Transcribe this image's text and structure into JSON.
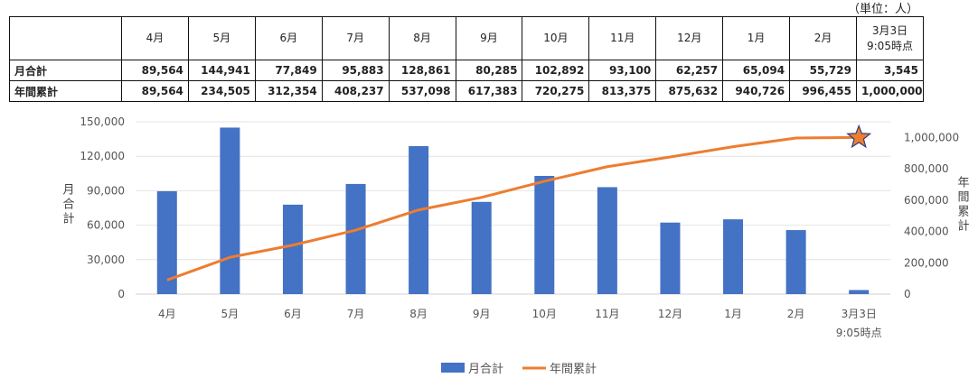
{
  "table": {
    "unit_note": "（単位：人）",
    "headers": [
      "",
      "4月",
      "5月",
      "6月",
      "7月",
      "8月",
      "9月",
      "10月",
      "11月",
      "12月",
      "1月",
      "2月",
      "3月3日\n9:05時点"
    ],
    "rows": [
      {
        "label": "月合計",
        "values": [
          "89,564",
          "144,941",
          "77,849",
          "95,883",
          "128,861",
          "80,285",
          "102,892",
          "93,100",
          "62,257",
          "65,094",
          "55,729",
          "3,545"
        ]
      },
      {
        "label": "年間累計",
        "values": [
          "89,564",
          "234,505",
          "312,354",
          "408,237",
          "537,098",
          "617,383",
          "720,275",
          "813,375",
          "875,632",
          "940,726",
          "996,455",
          "1,000,000"
        ]
      }
    ]
  },
  "chart_data": {
    "type": "bar",
    "categories": [
      "4月",
      "5月",
      "6月",
      "7月",
      "8月",
      "9月",
      "10月",
      "11月",
      "12月",
      "1月",
      "2月",
      "3月3日\n9:05時点"
    ],
    "series": [
      {
        "name": "月合計",
        "type": "bar",
        "axis": "left",
        "color": "#4472C4",
        "values": [
          89564,
          144941,
          77849,
          95883,
          128861,
          80285,
          102892,
          93100,
          62257,
          65094,
          55729,
          3545
        ]
      },
      {
        "name": "年間累計",
        "type": "line",
        "axis": "right",
        "color": "#ED7D31",
        "values": [
          89564,
          234505,
          312354,
          408237,
          537098,
          617383,
          720275,
          813375,
          875632,
          940726,
          996455,
          1000000
        ]
      }
    ],
    "y_left": {
      "label": "月合計",
      "ylim": [
        0,
        150000
      ],
      "ticks": [
        "0",
        "30,000",
        "60,000",
        "90,000",
        "120,000",
        "150,000"
      ]
    },
    "y_right": {
      "label": "年間累計",
      "ylim": [
        0,
        1100000
      ],
      "ticks": [
        "0",
        "200,000",
        "400,000",
        "600,000",
        "800,000",
        "1,000,000"
      ]
    },
    "marker": {
      "shape": "star",
      "series": "年間累計",
      "category_index": 11,
      "color": "#ED7D31"
    },
    "grid": true,
    "legend": "bottom"
  }
}
